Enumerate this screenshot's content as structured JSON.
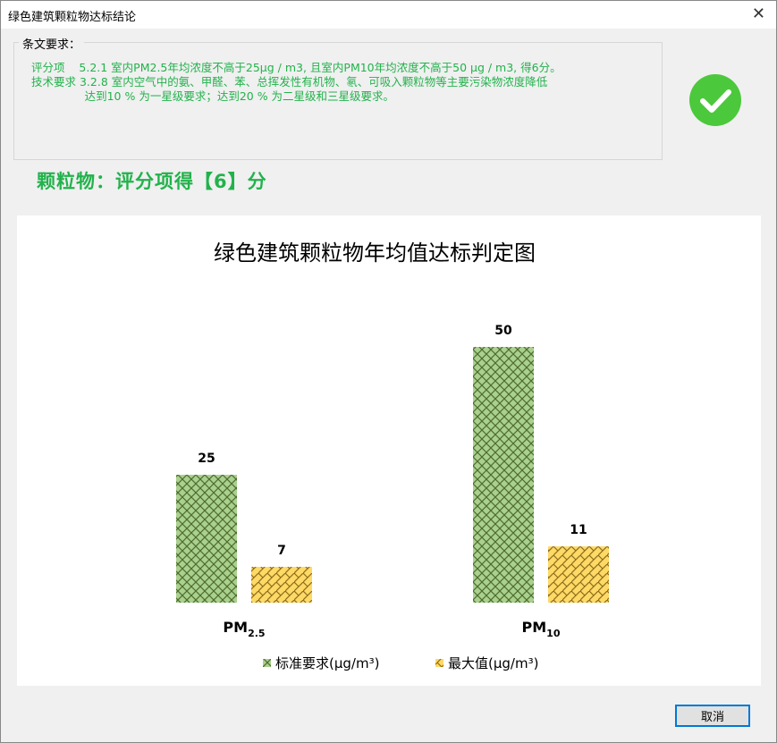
{
  "window": {
    "title": "绿色建筑颗粒物达标结论",
    "close_icon": "close-icon"
  },
  "requirements": {
    "label": "条文要求：",
    "line1": "评分项    5.2.1 室内PM2.5年均浓度不高于25μg / m3, 且室内PM10年均浓度不高于50 μg / m3, 得6分。",
    "line2": "技术要求 3.2.8 室内空气中的氨、甲醛、苯、总挥发性有机物、氡、可吸入颗粒物等主要污染物浓度降低",
    "line3": "               达到10 % 为一星级要求；达到20 % 为二星级和三星级要求。",
    "status_icon": "check-circle-icon",
    "status_color": "#4cc83c"
  },
  "score_text": "颗粒物：评分项得【6】分",
  "chart_data": {
    "type": "bar",
    "title": "绿色建筑颗粒物年均值达标判定图",
    "categories": [
      {
        "main": "PM",
        "sub": "2.5"
      },
      {
        "main": "PM",
        "sub": "10"
      }
    ],
    "series": [
      {
        "name": "标准要求(μg/m³)",
        "values": [
          25,
          50
        ],
        "color": "#a9d18e",
        "pattern": "crosshatch"
      },
      {
        "name": "最大值(μg/m³)",
        "values": [
          7,
          11
        ],
        "color": "#ffd966",
        "pattern": "weave"
      }
    ],
    "ylim": [
      0,
      50
    ],
    "grid": false,
    "legend": "bottom"
  },
  "buttons": {
    "cancel": "取消"
  }
}
